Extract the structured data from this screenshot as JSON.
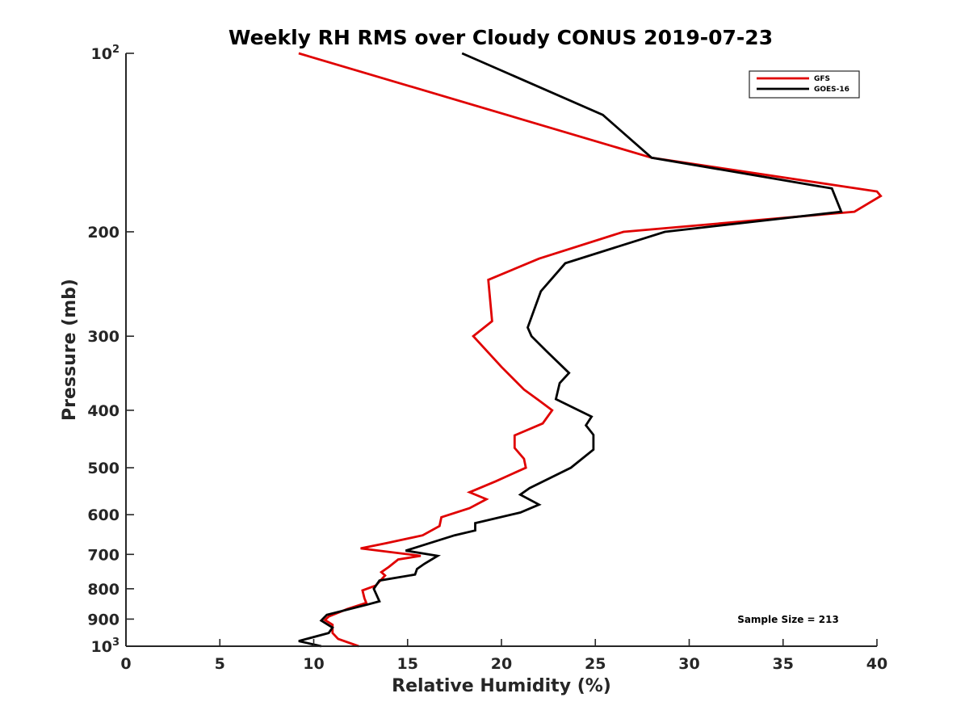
{
  "chart_data": {
    "type": "line",
    "title": "Weekly RH RMS over Cloudy CONUS 2019-07-23",
    "xlabel": "Relative Humidity (%)",
    "ylabel": "Pressure (mb)",
    "xlim": [
      0,
      40
    ],
    "ylim": [
      100,
      1000
    ],
    "y_scale": "log",
    "y_reversed": true,
    "grid": false,
    "legend_position": "top-right",
    "x_ticks": [
      "0",
      "5",
      "10",
      "15",
      "20",
      "25",
      "30",
      "35",
      "40"
    ],
    "y_ticks": [
      {
        "value": 100,
        "base": "10",
        "exp": "2"
      },
      {
        "value": 200,
        "label": "200"
      },
      {
        "value": 300,
        "label": "300"
      },
      {
        "value": 400,
        "label": "400"
      },
      {
        "value": 500,
        "label": "500"
      },
      {
        "value": 600,
        "label": "600"
      },
      {
        "value": 700,
        "label": "700"
      },
      {
        "value": 800,
        "label": "800"
      },
      {
        "value": 900,
        "label": "900"
      },
      {
        "value": 1000,
        "base": "10",
        "exp": "3"
      }
    ],
    "series": [
      {
        "name": "GFS",
        "color": "#e00000",
        "points": [
          [
            9.2,
            100
          ],
          [
            28.0,
            150
          ],
          [
            40.0,
            171
          ],
          [
            40.2,
            174
          ],
          [
            38.8,
            185
          ],
          [
            26.5,
            200
          ],
          [
            22.0,
            222
          ],
          [
            19.3,
            241
          ],
          [
            19.5,
            283
          ],
          [
            18.5,
            300
          ],
          [
            20.0,
            338
          ],
          [
            21.2,
            369
          ],
          [
            22.0,
            385
          ],
          [
            22.7,
            400
          ],
          [
            22.2,
            421
          ],
          [
            20.7,
            441
          ],
          [
            20.7,
            463
          ],
          [
            21.2,
            483
          ],
          [
            21.3,
            500
          ],
          [
            19.7,
            527
          ],
          [
            18.3,
            550
          ],
          [
            19.2,
            565
          ],
          [
            18.3,
            585
          ],
          [
            16.8,
            606
          ],
          [
            16.7,
            627
          ],
          [
            15.8,
            650
          ],
          [
            13.9,
            670
          ],
          [
            12.5,
            684
          ],
          [
            15.7,
            704
          ],
          [
            14.5,
            714
          ],
          [
            14.0,
            735
          ],
          [
            13.6,
            750
          ],
          [
            13.8,
            760
          ],
          [
            13.3,
            790
          ],
          [
            12.6,
            805
          ],
          [
            12.7,
            830
          ],
          [
            12.8,
            845
          ],
          [
            11.8,
            865
          ],
          [
            10.8,
            891
          ],
          [
            10.6,
            903
          ],
          [
            11.0,
            920
          ],
          [
            11.0,
            950
          ],
          [
            11.3,
            972
          ],
          [
            12.4,
            1000
          ]
        ]
      },
      {
        "name": "GOES-16",
        "color": "#000000",
        "points": [
          [
            17.9,
            100
          ],
          [
            25.4,
            127
          ],
          [
            28.0,
            150
          ],
          [
            37.6,
            169
          ],
          [
            38.1,
            185
          ],
          [
            28.7,
            200
          ],
          [
            23.4,
            226
          ],
          [
            22.1,
            252
          ],
          [
            21.4,
            290
          ],
          [
            21.6,
            300
          ],
          [
            22.4,
            318
          ],
          [
            23.6,
            346
          ],
          [
            23.1,
            360
          ],
          [
            22.9,
            383
          ],
          [
            24.8,
            410
          ],
          [
            24.5,
            424
          ],
          [
            24.9,
            440
          ],
          [
            24.9,
            466
          ],
          [
            23.7,
            500
          ],
          [
            21.5,
            541
          ],
          [
            21.0,
            555
          ],
          [
            22.0,
            577
          ],
          [
            21.0,
            595
          ],
          [
            18.6,
            620
          ],
          [
            18.6,
            638
          ],
          [
            17.5,
            650
          ],
          [
            14.9,
            690
          ],
          [
            16.6,
            704
          ],
          [
            15.9,
            726
          ],
          [
            15.5,
            741
          ],
          [
            15.4,
            757
          ],
          [
            13.5,
            775
          ],
          [
            13.2,
            800
          ],
          [
            13.5,
            840
          ],
          [
            12.9,
            850
          ],
          [
            10.7,
            885
          ],
          [
            10.4,
            905
          ],
          [
            11.0,
            930
          ],
          [
            10.8,
            950
          ],
          [
            9.2,
            980
          ],
          [
            10.4,
            1000
          ]
        ]
      }
    ],
    "annotation": "Sample Size = 213"
  }
}
